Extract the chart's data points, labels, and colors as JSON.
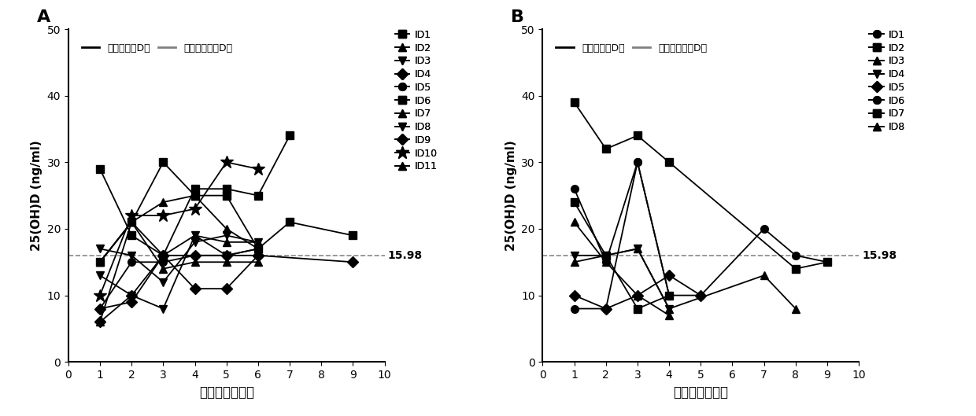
{
  "panel_A": {
    "title": "A",
    "series": [
      {
        "id": "ID1",
        "marker": "s",
        "data": [
          [
            1,
            29
          ],
          [
            2,
            19
          ],
          [
            3,
            16
          ],
          [
            4,
            26
          ],
          [
            5,
            26
          ],
          [
            6,
            25
          ],
          [
            7,
            34
          ]
        ]
      },
      {
        "id": "ID2",
        "marker": "^",
        "data": [
          [
            1,
            15
          ],
          [
            2,
            21
          ],
          [
            3,
            16
          ],
          [
            4,
            19
          ],
          [
            5,
            18
          ],
          [
            6,
            18
          ]
        ]
      },
      {
        "id": "ID3",
        "marker": "v",
        "data": [
          [
            1,
            13
          ],
          [
            2,
            10
          ],
          [
            3,
            8
          ],
          [
            4,
            19
          ],
          [
            5,
            16
          ],
          [
            6,
            17
          ]
        ]
      },
      {
        "id": "ID4",
        "marker": "D",
        "data": [
          [
            1,
            8
          ],
          [
            2,
            9
          ],
          [
            3,
            16
          ],
          [
            4,
            16
          ],
          [
            5,
            16
          ],
          [
            6,
            16
          ]
        ]
      },
      {
        "id": "ID5",
        "marker": "o",
        "data": [
          [
            1,
            8
          ],
          [
            2,
            15
          ],
          [
            3,
            15
          ],
          [
            4,
            16
          ],
          [
            5,
            16
          ],
          [
            6,
            17
          ]
        ]
      },
      {
        "id": "ID6",
        "marker": "s",
        "data": [
          [
            1,
            15
          ],
          [
            2,
            21
          ],
          [
            3,
            30
          ],
          [
            4,
            25
          ],
          [
            5,
            25
          ],
          [
            6,
            17
          ],
          [
            7,
            21
          ],
          [
            9,
            19
          ]
        ]
      },
      {
        "id": "ID7",
        "marker": "^",
        "data": [
          [
            1,
            15
          ],
          [
            2,
            21
          ],
          [
            3,
            24
          ],
          [
            4,
            25
          ],
          [
            5,
            20
          ],
          [
            6,
            17
          ]
        ]
      },
      {
        "id": "ID8",
        "marker": "v",
        "data": [
          [
            1,
            17
          ],
          [
            2,
            16
          ],
          [
            3,
            12
          ],
          [
            4,
            18
          ],
          [
            5,
            19
          ],
          [
            6,
            18
          ]
        ]
      },
      {
        "id": "ID9",
        "marker": "D",
        "data": [
          [
            1,
            6
          ],
          [
            2,
            10
          ],
          [
            3,
            16
          ],
          [
            4,
            11
          ],
          [
            5,
            11
          ],
          [
            6,
            16
          ],
          [
            9,
            15
          ]
        ]
      },
      {
        "id": "ID10",
        "marker": "*",
        "data": [
          [
            1,
            10
          ],
          [
            2,
            22
          ],
          [
            3,
            22
          ],
          [
            4,
            23
          ],
          [
            5,
            30
          ],
          [
            6,
            29
          ]
        ]
      },
      {
        "id": "ID11",
        "marker": "^",
        "data": [
          [
            1,
            6
          ],
          [
            2,
            21
          ],
          [
            3,
            14
          ],
          [
            4,
            15
          ],
          [
            5,
            15
          ],
          [
            6,
            15
          ]
        ]
      }
    ],
    "dashed_value": 15.98,
    "xlabel": "随访时间（月）",
    "ylabel": "25(OH)D (ng/ml)",
    "xlim": [
      0,
      10
    ],
    "ylim": [
      0,
      50
    ],
    "xticks": [
      0,
      1,
      2,
      3,
      4,
      5,
      6,
      7,
      8,
      9,
      10
    ],
    "yticks": [
      0,
      10,
      20,
      30,
      40,
      50
    ],
    "legend_line1": "补充维生素D组",
    "legend_line2": "未补充维生素D组"
  },
  "panel_B": {
    "title": "B",
    "series": [
      {
        "id": "ID1",
        "marker": "o",
        "data": [
          [
            1,
            8
          ],
          [
            2,
            8
          ],
          [
            3,
            30
          ],
          [
            4,
            10
          ],
          [
            5,
            10
          ],
          [
            7,
            20
          ],
          [
            8,
            16
          ],
          [
            9,
            15
          ]
        ]
      },
      {
        "id": "ID2",
        "marker": "s",
        "data": [
          [
            1,
            39
          ],
          [
            2,
            32
          ],
          [
            3,
            34
          ],
          [
            4,
            30
          ],
          [
            8,
            14
          ],
          [
            9,
            15
          ]
        ]
      },
      {
        "id": "ID3",
        "marker": "^",
        "data": [
          [
            1,
            15
          ],
          [
            2,
            16
          ],
          [
            3,
            17
          ],
          [
            4,
            8
          ],
          [
            7,
            13
          ],
          [
            8,
            8
          ]
        ]
      },
      {
        "id": "ID4",
        "marker": "v",
        "data": [
          [
            1,
            16
          ],
          [
            2,
            16
          ],
          [
            3,
            17
          ],
          [
            4,
            8
          ]
        ]
      },
      {
        "id": "ID5",
        "marker": "D",
        "data": [
          [
            1,
            10
          ],
          [
            2,
            8
          ],
          [
            3,
            10
          ],
          [
            4,
            13
          ],
          [
            5,
            10
          ]
        ]
      },
      {
        "id": "ID6",
        "marker": "o",
        "data": [
          [
            1,
            26
          ],
          [
            2,
            15
          ],
          [
            3,
            30
          ],
          [
            4,
            10
          ]
        ]
      },
      {
        "id": "ID7",
        "marker": "s",
        "data": [
          [
            1,
            24
          ],
          [
            2,
            16
          ],
          [
            3,
            8
          ],
          [
            4,
            10
          ]
        ]
      },
      {
        "id": "ID8",
        "marker": "^",
        "data": [
          [
            1,
            21
          ],
          [
            2,
            15
          ],
          [
            3,
            10
          ],
          [
            4,
            7
          ]
        ]
      }
    ],
    "dashed_value": 15.98,
    "xlabel": "随访时间（月）",
    "ylabel": "25(OH)D (ng/ml)",
    "xlim": [
      0,
      10
    ],
    "ylim": [
      0,
      50
    ],
    "xticks": [
      0,
      1,
      2,
      3,
      4,
      5,
      6,
      7,
      8,
      9,
      10
    ],
    "yticks": [
      0,
      10,
      20,
      30,
      40,
      50
    ],
    "legend_line1": "补充维生素D组",
    "legend_line2": "未补充维生素D组"
  },
  "line_color": "#000000",
  "background_color": "#ffffff",
  "dashed_color": "#888888"
}
